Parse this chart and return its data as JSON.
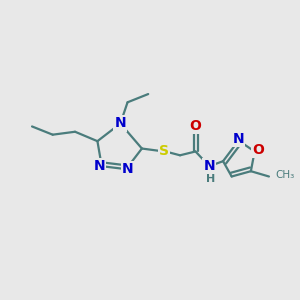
{
  "bg_color": "#e8e8e8",
  "bond_color": "#4a7c7c",
  "bond_width": 1.6,
  "atom_colors": {
    "N": "#0000cc",
    "S": "#cccc00",
    "O": "#cc0000",
    "C": "#4a7c7c",
    "H": "#4a7c7c"
  },
  "font_size_atom": 10,
  "font_size_small": 8
}
